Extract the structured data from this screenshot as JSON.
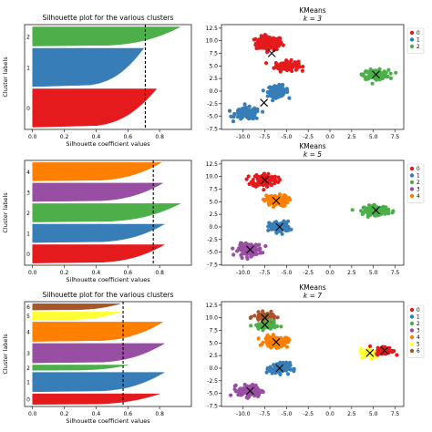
{
  "figure": {
    "background": "#ffffff"
  },
  "palette": {
    "0": "#e41a1c",
    "1": "#377eb8",
    "2": "#4daf4a",
    "3": "#984ea3",
    "4": "#ff7f00",
    "5": "#ffff33",
    "6": "#a65628"
  },
  "chart_data": [
    {
      "type": "area",
      "title": "Silhouette plot for the various clusters",
      "xlabel": "Silhouette coefficient values",
      "ylabel": "Cluster labels",
      "xlim": [
        -0.05,
        1.0
      ],
      "xticks": [
        "0.0",
        "0.2",
        "0.4",
        "0.6",
        "0.8"
      ],
      "average_silhouette": 0.71,
      "clusters": [
        {
          "label": "0",
          "size": 2,
          "max": 0.78,
          "min": 0.0
        },
        {
          "label": "1",
          "size": 2,
          "max": 0.7,
          "min": 0.0
        },
        {
          "label": "2",
          "size": 1,
          "max": 0.93,
          "min": 0.0
        }
      ]
    },
    {
      "type": "scatter",
      "title": "KMeans",
      "subtitle": "k = 3",
      "xlim": [
        -12.5,
        8.5
      ],
      "ylim": [
        -7.6,
        13.2
      ],
      "xticks": [
        "-10.0",
        "-7.5",
        "-5.0",
        "-2.5",
        "0.0",
        "2.5",
        "5.0",
        "7.5"
      ],
      "yticks": [
        "-7.5",
        "-5.0",
        "-2.5",
        "0.0",
        "2.5",
        "5.0",
        "7.5",
        "10.0",
        "12.5"
      ],
      "legend": {
        "position": "top-right",
        "entries": [
          "0",
          "1",
          "2"
        ]
      },
      "blobs": [
        {
          "label": "0",
          "cx": -7.0,
          "cy": 9.5,
          "rx": 1.7,
          "ry": 1.5,
          "n": 130
        },
        {
          "label": "0",
          "cx": -5.0,
          "cy": 5.0,
          "rx": 1.5,
          "ry": 1.1,
          "n": 110
        },
        {
          "label": "1",
          "cx": -6.0,
          "cy": 0.0,
          "rx": 1.3,
          "ry": 1.2,
          "n": 110
        },
        {
          "label": "1",
          "cx": -9.5,
          "cy": -4.5,
          "rx": 1.6,
          "ry": 1.3,
          "n": 120
        },
        {
          "label": "2",
          "cx": 5.3,
          "cy": 3.3,
          "rx": 1.6,
          "ry": 1.0,
          "n": 140
        }
      ],
      "centers": [
        [
          -6.7,
          7.5
        ],
        [
          -7.6,
          -2.3
        ],
        [
          5.3,
          3.3
        ]
      ]
    },
    {
      "type": "area",
      "title": "",
      "xlabel": "Silhouette coefficient values",
      "ylabel": "Cluster labels",
      "xlim": [
        -0.05,
        1.0
      ],
      "xticks": [
        "0.0",
        "0.2",
        "0.4",
        "0.6",
        "0.8"
      ],
      "average_silhouette": 0.76,
      "clusters": [
        {
          "label": "0",
          "size": 1,
          "max": 0.83,
          "min": 0.02
        },
        {
          "label": "1",
          "size": 1,
          "max": 0.83,
          "min": 0.02
        },
        {
          "label": "2",
          "size": 1,
          "max": 0.93,
          "min": 0.02
        },
        {
          "label": "3",
          "size": 1,
          "max": 0.82,
          "min": 0.02
        },
        {
          "label": "4",
          "size": 1,
          "max": 0.81,
          "min": 0.02
        }
      ]
    },
    {
      "type": "scatter",
      "title": "KMeans",
      "subtitle": "k = 5",
      "xlim": [
        -12.5,
        8.5
      ],
      "ylim": [
        -7.6,
        13.2
      ],
      "xticks": [
        "-10.0",
        "-7.5",
        "-5.0",
        "-2.5",
        "0.0",
        "2.5",
        "5.0",
        "7.5"
      ],
      "yticks": [
        "-7.5",
        "-5.0",
        "-2.5",
        "0.0",
        "2.5",
        "5.0",
        "7.5",
        "10.0",
        "12.5"
      ],
      "legend": {
        "position": "top-right",
        "entries": [
          "0",
          "1",
          "2",
          "3",
          "4"
        ]
      },
      "blobs": [
        {
          "label": "0",
          "cx": -7.5,
          "cy": 9.3,
          "rx": 1.6,
          "ry": 1.5,
          "n": 120
        },
        {
          "label": "4",
          "cx": -6.2,
          "cy": 5.2,
          "rx": 1.5,
          "ry": 1.2,
          "n": 110
        },
        {
          "label": "1",
          "cx": -5.8,
          "cy": 0.0,
          "rx": 1.3,
          "ry": 1.2,
          "n": 110
        },
        {
          "label": "3",
          "cx": -9.2,
          "cy": -4.5,
          "rx": 1.5,
          "ry": 1.3,
          "n": 120
        },
        {
          "label": "2",
          "cx": 5.3,
          "cy": 3.3,
          "rx": 1.6,
          "ry": 1.0,
          "n": 140
        }
      ],
      "centers": [
        [
          -7.5,
          9.3
        ],
        [
          -5.8,
          0.0
        ],
        [
          5.3,
          3.3
        ],
        [
          -9.2,
          -4.5
        ],
        [
          -6.2,
          5.2
        ]
      ]
    },
    {
      "type": "area",
      "title": "Silhouette plot for the various clusters",
      "xlabel": "Silhouette coefficient values",
      "ylabel": "Cluster labels",
      "xlim": [
        -0.05,
        1.0
      ],
      "xticks": [
        "0.0",
        "0.2",
        "0.4",
        "0.6",
        "0.8"
      ],
      "average_silhouette": 0.57,
      "clusters": [
        {
          "label": "0",
          "size": 0.6,
          "max": 0.8,
          "min": 0.0
        },
        {
          "label": "1",
          "size": 1.1,
          "max": 0.83,
          "min": 0.02
        },
        {
          "label": "2",
          "size": 0.3,
          "max": 0.6,
          "min": 0.0
        },
        {
          "label": "3",
          "size": 1.1,
          "max": 0.83,
          "min": 0.02
        },
        {
          "label": "4",
          "size": 1.1,
          "max": 0.82,
          "min": 0.02
        },
        {
          "label": "5",
          "size": 0.45,
          "max": 0.55,
          "min": -0.05
        },
        {
          "label": "6",
          "size": 0.35,
          "max": 0.55,
          "min": 0.0
        }
      ]
    },
    {
      "type": "scatter",
      "title": "KMeans",
      "subtitle": "k = 7",
      "xlim": [
        -12.5,
        8.5
      ],
      "ylim": [
        -7.6,
        13.2
      ],
      "xticks": [
        "-10.0",
        "-7.5",
        "-5.0",
        "-2.5",
        "0.0",
        "2.5",
        "5.0",
        "7.5"
      ],
      "yticks": [
        "-7.5",
        "-5.0",
        "-2.5",
        "0.0",
        "2.5",
        "5.0",
        "7.5",
        "10.0",
        "12.5"
      ],
      "legend": {
        "position": "top-right",
        "entries": [
          "0",
          "1",
          "2",
          "3",
          "4",
          "5",
          "6"
        ]
      },
      "blobs": [
        {
          "label": "6",
          "cx": -7.5,
          "cy": 10.2,
          "rx": 1.4,
          "ry": 0.9,
          "n": 70
        },
        {
          "label": "2",
          "cx": -7.5,
          "cy": 8.4,
          "rx": 1.4,
          "ry": 0.9,
          "n": 70
        },
        {
          "label": "4",
          "cx": -6.2,
          "cy": 5.2,
          "rx": 1.5,
          "ry": 1.2,
          "n": 110
        },
        {
          "label": "1",
          "cx": -5.8,
          "cy": 0.0,
          "rx": 1.3,
          "ry": 1.2,
          "n": 110
        },
        {
          "label": "3",
          "cx": -9.2,
          "cy": -4.5,
          "rx": 1.5,
          "ry": 1.3,
          "n": 120
        },
        {
          "label": "5",
          "cx": 4.6,
          "cy": 3.0,
          "rx": 1.2,
          "ry": 1.0,
          "n": 80
        },
        {
          "label": "0",
          "cx": 6.3,
          "cy": 3.5,
          "rx": 1.1,
          "ry": 0.9,
          "n": 70
        }
      ],
      "centers": [
        [
          6.3,
          3.5
        ],
        [
          -5.8,
          0.0
        ],
        [
          -7.5,
          8.6
        ],
        [
          -9.2,
          -4.5
        ],
        [
          -6.2,
          5.2
        ],
        [
          4.6,
          3.0
        ],
        [
          -7.5,
          10.0
        ]
      ]
    }
  ]
}
